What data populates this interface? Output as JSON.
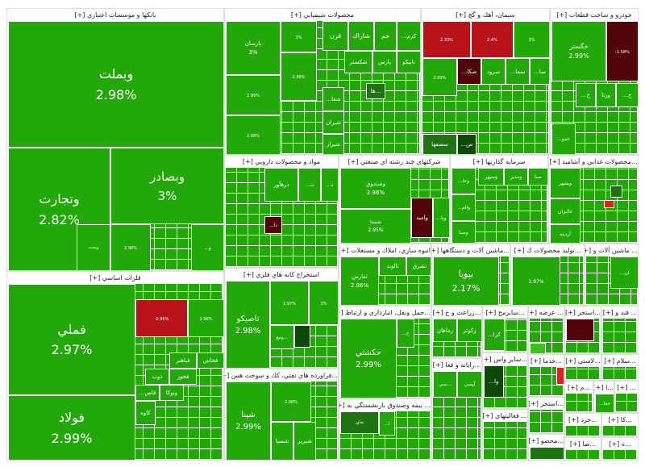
{
  "colors": {
    "up": "#22a808",
    "strong_up": "#1d7410",
    "very_strong": "#0b4a05",
    "down": "#b8121a",
    "strong_down": "#520508"
  },
  "expand_marker": "[+]",
  "sectors": [
    {
      "title": "بانكها و موسسات اعتباري [+]",
      "tiles": [
        {
          "name": "وبملت",
          "change": "2.98%",
          "c": "g"
        },
        {
          "name": "وتجارت",
          "change": "2.82%",
          "c": "g"
        },
        {
          "name": "وبصادر",
          "change": "3%",
          "c": "g"
        },
        {
          "name": "وپست",
          "change": "",
          "c": "g"
        },
        {
          "name": "",
          "change": "2.98%",
          "c": "g"
        },
        {
          "name": "و...",
          "change": "",
          "c": "g"
        }
      ]
    },
    {
      "title": "محصولات شيميايي [+]",
      "tiles": [
        {
          "name": "پارسان",
          "change": "3%",
          "c": "g"
        },
        {
          "name": "",
          "change": "3%",
          "c": "g"
        },
        {
          "name": "",
          "change": "2.99%",
          "c": "g"
        },
        {
          "name": "",
          "change": "2.99%",
          "c": "g"
        },
        {
          "name": "",
          "change": "2.98%",
          "c": "g"
        },
        {
          "name": "قرن",
          "change": "",
          "c": "g"
        },
        {
          "name": "شاراك",
          "change": "",
          "c": "g"
        },
        {
          "name": "جم",
          "change": "",
          "c": "g"
        },
        {
          "name": "كرم...",
          "change": "",
          "c": "g"
        },
        {
          "name": "تاپيكو",
          "change": "",
          "c": "g"
        },
        {
          "name": "پارس",
          "change": "",
          "c": "g"
        },
        {
          "name": "شكستر",
          "change": "",
          "c": "g"
        },
        {
          "name": "شفا...",
          "change": "",
          "c": "g"
        },
        {
          "name": "شيران",
          "change": "",
          "c": "g"
        },
        {
          "name": "شيراز",
          "change": "",
          "c": "g"
        },
        {
          "name": "...ها",
          "change": "",
          "c": "dg"
        }
      ]
    },
    {
      "title": "سيمان، آهك و گچ [+]",
      "tiles": [
        {
          "name": "",
          "change": "2.33%",
          "c": "r"
        },
        {
          "name": "",
          "change": "2.4%",
          "c": "r"
        },
        {
          "name": "",
          "change": "3%",
          "c": "g"
        },
        {
          "name": "",
          "change": "2.99%",
          "c": "g"
        },
        {
          "name": "صكا...",
          "change": "",
          "c": "dr"
        },
        {
          "name": "سرود",
          "change": "",
          "c": "g"
        },
        {
          "name": "سما...",
          "change": "",
          "c": "g"
        },
        {
          "name": "سا...",
          "change": "",
          "c": "g"
        },
        {
          "name": "سصفها",
          "change": "",
          "c": "dg"
        },
        {
          "name": "س...",
          "change": "",
          "c": "vg"
        }
      ]
    },
    {
      "title": "خودرو و ساخت قطعات [+]",
      "tiles": [
        {
          "name": "خگستر",
          "change": "2.99%",
          "c": "g"
        },
        {
          "name": "",
          "change": "-1.58%",
          "c": "dr"
        },
        {
          "name": "خ...",
          "change": "",
          "c": "g"
        },
        {
          "name": "ورنا",
          "change": "",
          "c": "g"
        },
        {
          "name": "خ...",
          "change": "",
          "c": "g"
        },
        {
          "name": "خمو...",
          "change": "",
          "c": "g"
        }
      ]
    },
    {
      "title": "مواد و محصولات دارويي [+]",
      "tiles": [
        {
          "name": "درهآور",
          "change": "",
          "c": "g"
        },
        {
          "name": "ت...",
          "change": "",
          "c": "g"
        },
        {
          "name": "د...",
          "change": "",
          "c": "g"
        },
        {
          "name": "دا...",
          "change": "",
          "c": "dr"
        }
      ]
    },
    {
      "title": "شركتهاي چند رشته اي صنعتي [+]",
      "tiles": [
        {
          "name": "وصندوق",
          "change": "2.96%",
          "c": "g"
        },
        {
          "name": "شستا",
          "change": "2.95%",
          "c": "g"
        },
        {
          "name": "واميد",
          "change": "",
          "c": "dr"
        },
        {
          "name": "وپا...",
          "change": "",
          "c": "g"
        }
      ]
    },
    {
      "title": "سرمايه گذاريها [+]",
      "tiles": [
        {
          "name": "وخا...",
          "change": "",
          "c": "g"
        },
        {
          "name": "وسپهر",
          "change": "",
          "c": "g"
        },
        {
          "name": "ومدير",
          "change": "",
          "c": "g"
        },
        {
          "name": "صبا",
          "change": "",
          "c": "g"
        },
        {
          "name": "والم...",
          "change": "",
          "c": "g"
        },
        {
          "name": "وصنا",
          "change": "",
          "c": "g"
        }
      ]
    },
    {
      "title": "...محصولات غذايي و آشاميد [+]",
      "tiles": [
        {
          "name": "ويشهر",
          "change": "",
          "c": "g"
        },
        {
          "name": "غاليزان",
          "change": "",
          "c": "g"
        },
        {
          "name": "آردينه",
          "change": "",
          "c": "g"
        },
        {
          "name": "",
          "change": "",
          "c": "dg"
        },
        {
          "name": "",
          "change": "",
          "c": "lr"
        }
      ]
    },
    {
      "title": "فلزات اساسي [+]",
      "tiles": [
        {
          "name": "فملي",
          "change": "2.97%",
          "c": "g"
        },
        {
          "name": "فولاد",
          "change": "2.99%",
          "c": "g"
        },
        {
          "name": "",
          "change": "-2.96%",
          "c": "r"
        },
        {
          "name": "",
          "change": "2.98%",
          "c": "g"
        },
        {
          "name": "فخاس",
          "change": "",
          "c": "g"
        },
        {
          "name": "فباهنر",
          "change": "",
          "c": "g"
        },
        {
          "name": "ذوب",
          "change": "",
          "c": "g"
        },
        {
          "name": "فخوز",
          "change": "",
          "c": "g"
        },
        {
          "name": "فاس...",
          "change": "",
          "c": "g"
        },
        {
          "name": "ونوكا",
          "change": "",
          "c": "g"
        },
        {
          "name": "كاوه",
          "change": "",
          "c": "g"
        }
      ]
    },
    {
      "title": "استخراج كانه هاي فلزي [+]",
      "tiles": [
        {
          "name": "تاصيكو",
          "change": "2.98%",
          "c": "g"
        },
        {
          "name": "",
          "change": "2.97%",
          "c": "g"
        },
        {
          "name": "",
          "change": "3%",
          "c": "g"
        },
        {
          "name": "...ومع",
          "change": "",
          "c": "g"
        },
        {
          "name": "",
          "change": "",
          "c": "vg"
        }
      ]
    },
    {
      "title": "...فراورده هاي نفتي، كك و سوخت هس [+]",
      "tiles": [
        {
          "name": "شپنا",
          "change": "2.99%",
          "c": "g"
        },
        {
          "name": "",
          "change": "2.98%",
          "c": "g"
        },
        {
          "name": "شبريز",
          "change": "",
          "c": "g"
        },
        {
          "name": "شسپا",
          "change": "",
          "c": "g"
        }
      ]
    },
    {
      "title": "انبوه سازي، املاك و مستغلات [+]",
      "tiles": [
        {
          "name": "ثفارس",
          "change": "2.96%",
          "c": "g"
        },
        {
          "name": "ثالوند",
          "change": "",
          "c": "g"
        },
        {
          "name": "ثشرق",
          "change": "",
          "c": "g"
        }
      ]
    },
    {
      "title": "...حمل ونقل، انبارداري و ارتباط [+]",
      "tiles": [
        {
          "name": "حكشتي",
          "change": "2.99%",
          "c": "g"
        },
        {
          "name": "ح...",
          "change": "",
          "c": "g"
        }
      ]
    },
    {
      "title": "... بيمه وصندوق بازنشستگي به [+]",
      "tiles": [
        {
          "name": "بخاور",
          "change": "",
          "c": "dg"
        },
        {
          "name": "ا...",
          "change": "",
          "c": "g"
        }
      ]
    },
    {
      "title": "...ماشين آلات و دستگاهها [+]",
      "tiles": [
        {
          "name": "بپويا",
          "change": "2.17%",
          "c": "g"
        }
      ]
    },
    {
      "title": "...توليد محصولات ك [+]",
      "tiles": [
        {
          "name": "",
          "change": "2.97%",
          "c": "g"
        }
      ]
    },
    {
      "title": "... ماشين آلات و [+]",
      "tiles": [
        {
          "name": "ان...",
          "change": "",
          "c": "g"
        }
      ]
    },
    {
      "title": "...زراعت و خ [+]",
      "tiles": [
        {
          "name": "زماهان",
          "change": "",
          "c": "g"
        },
        {
          "name": "زكوثر",
          "change": "",
          "c": "g"
        }
      ]
    },
    {
      "title": "...سايرمح [+]",
      "tiles": [
        {
          "name": "كرا...",
          "change": "",
          "c": "g"
        }
      ]
    },
    {
      "title": "... عرضه [+]",
      "tiles": [
        {
          "name": "",
          "change": "",
          "c": "lg"
        }
      ]
    },
    {
      "title": "...استخر [+]",
      "tiles": [
        {
          "name": "",
          "change": "",
          "c": "dr"
        }
      ]
    },
    {
      "title": "... قند و [+]",
      "tiles": []
    },
    {
      "title": "...رايانه و فعا [+]",
      "tiles": [
        {
          "name": "...سي",
          "change": "",
          "c": "g"
        },
        {
          "name": "آپسي",
          "change": "",
          "c": "g"
        }
      ]
    },
    {
      "title": "...ساير واس [+]",
      "tiles": [
        {
          "name": "وا...",
          "change": "",
          "c": "vg"
        }
      ]
    },
    {
      "title": "... فعاليتهاي [+]",
      "tiles": []
    },
    {
      "title": "...خدما [+]",
      "tiles": [
        {
          "name": "",
          "change": "",
          "c": "lr"
        }
      ]
    },
    {
      "title": "...لاستي [+]",
      "tiles": []
    },
    {
      "title": "...سلام [+]",
      "tiles": []
    },
    {
      "title": "...استخر [+]",
      "tiles": []
    },
    {
      "title": "...م [+]",
      "tiles": []
    },
    {
      "title": "...ا [+]",
      "tiles": [
        {
          "name": "حفا...",
          "change": "",
          "c": "g"
        }
      ]
    },
    {
      "title": "... [+]",
      "tiles": []
    },
    {
      "title": "...محصو [+]",
      "tiles": [
        {
          "name": "",
          "change": "",
          "c": "dg"
        }
      ]
    },
    {
      "title": "...خرد [+]",
      "tiles": []
    },
    {
      "title": "...كا [+]",
      "tiles": []
    },
    {
      "title": "...صا [+]",
      "tiles": []
    },
    {
      "title": "...ه [+]",
      "tiles": []
    }
  ]
}
